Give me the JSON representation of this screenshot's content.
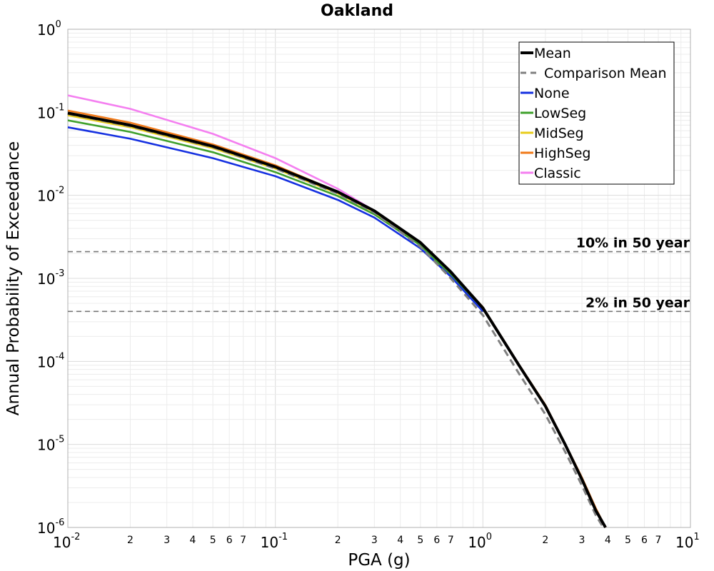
{
  "chart_data": {
    "type": "line",
    "title": "Oakland",
    "xlabel": "PGA (g)",
    "ylabel": "Annual Probability of Exceedance",
    "x_scale": "log",
    "y_scale": "log",
    "xlim": [
      0.01,
      10
    ],
    "ylim": [
      1e-06,
      1
    ],
    "grid": true,
    "legend_position": "top-right",
    "x_major_ticks": [
      {
        "base": "10",
        "exp": "-2",
        "value": 0.01
      },
      {
        "base": "10",
        "exp": "-1",
        "value": 0.1
      },
      {
        "base": "10",
        "exp": "0",
        "value": 1
      },
      {
        "base": "10",
        "exp": "1",
        "value": 10
      }
    ],
    "y_major_ticks": [
      {
        "base": "10",
        "exp": "0",
        "value": 1
      },
      {
        "base": "10",
        "exp": "-1",
        "value": 0.1
      },
      {
        "base": "10",
        "exp": "-2",
        "value": 0.01
      },
      {
        "base": "10",
        "exp": "-3",
        "value": 0.001
      },
      {
        "base": "10",
        "exp": "-4",
        "value": 0.0001
      },
      {
        "base": "10",
        "exp": "-5",
        "value": 1e-05
      },
      {
        "base": "10",
        "exp": "-6",
        "value": 1e-06
      }
    ],
    "x_minor_labels": [
      "2",
      "3",
      "4",
      "5",
      "6",
      "7"
    ],
    "reference_lines": [
      {
        "label": "10% in 50 year",
        "y": 0.0021,
        "color": "#777777"
      },
      {
        "label": "2% in 50 year",
        "y": 0.0004,
        "color": "#777777"
      }
    ],
    "series": [
      {
        "name": "Classic",
        "color": "#f47ff0",
        "style": "solid",
        "x": [
          0.01,
          0.02,
          0.05,
          0.1,
          0.2,
          0.3,
          0.5,
          0.7,
          1.0
        ],
        "y": [
          0.16,
          0.11,
          0.055,
          0.028,
          0.012,
          0.0065,
          0.0025,
          0.0011,
          0.00042
        ]
      },
      {
        "name": "HighSeg",
        "color": "#f07a1a",
        "style": "solid",
        "x": [
          0.01,
          0.02,
          0.05,
          0.1,
          0.2,
          0.3,
          0.5,
          0.7,
          1.0,
          1.5,
          2.0,
          2.5,
          3.0,
          3.5,
          3.9
        ],
        "y": [
          0.105,
          0.075,
          0.041,
          0.023,
          0.011,
          0.0065,
          0.0027,
          0.0012,
          0.00045,
          9e-05,
          3e-05,
          1e-05,
          4e-06,
          1.7e-06,
          1e-06
        ]
      },
      {
        "name": "MidSeg",
        "color": "#e8cc1c",
        "style": "solid",
        "x": [
          0.01,
          0.02,
          0.05,
          0.1,
          0.2,
          0.3,
          0.5,
          0.7,
          1.0
        ],
        "y": [
          0.092,
          0.066,
          0.037,
          0.021,
          0.0105,
          0.0063,
          0.0026,
          0.0012,
          0.00044
        ]
      },
      {
        "name": "LowSeg",
        "color": "#3fa02c",
        "style": "solid",
        "x": [
          0.01,
          0.02,
          0.05,
          0.1,
          0.2,
          0.3,
          0.5,
          0.7,
          1.0
        ],
        "y": [
          0.08,
          0.058,
          0.033,
          0.019,
          0.0098,
          0.0059,
          0.0025,
          0.0011,
          0.00042
        ]
      },
      {
        "name": "None",
        "color": "#1530e0",
        "style": "solid",
        "x": [
          0.01,
          0.02,
          0.05,
          0.1,
          0.2,
          0.3,
          0.5,
          0.7,
          1.0
        ],
        "y": [
          0.066,
          0.048,
          0.028,
          0.017,
          0.0088,
          0.0054,
          0.0023,
          0.00105,
          0.0004
        ]
      },
      {
        "name": "Comparison Mean",
        "color": "#808080",
        "style": "dashed",
        "x": [
          0.01,
          0.02,
          0.05,
          0.1,
          0.2,
          0.3,
          0.5,
          0.7,
          1.0,
          1.5,
          2.0,
          2.5,
          3.0,
          3.5,
          3.8
        ],
        "y": [
          0.096,
          0.068,
          0.038,
          0.021,
          0.0105,
          0.0062,
          0.0024,
          0.001,
          0.00036,
          7e-05,
          2.3e-05,
          8e-06,
          3.2e-06,
          1.4e-06,
          1e-06
        ]
      },
      {
        "name": "Mean",
        "color": "#000000",
        "style": "solid",
        "x": [
          0.01,
          0.02,
          0.05,
          0.1,
          0.2,
          0.3,
          0.5,
          0.7,
          1.0,
          1.5,
          2.0,
          2.5,
          3.0,
          3.5,
          3.9
        ],
        "y": [
          0.098,
          0.07,
          0.039,
          0.022,
          0.011,
          0.0065,
          0.0027,
          0.0012,
          0.00044,
          8.8e-05,
          2.9e-05,
          9.8e-06,
          3.8e-06,
          1.6e-06,
          1e-06
        ]
      }
    ],
    "legend": [
      {
        "name": "Mean",
        "color": "#000000",
        "style": "solid-thick"
      },
      {
        "name": "Comparison Mean",
        "color": "#808080",
        "style": "dashed"
      },
      {
        "name": "None",
        "color": "#1530e0",
        "style": "solid"
      },
      {
        "name": "LowSeg",
        "color": "#3fa02c",
        "style": "solid"
      },
      {
        "name": "MidSeg",
        "color": "#e8cc1c",
        "style": "solid"
      },
      {
        "name": "HighSeg",
        "color": "#f07a1a",
        "style": "solid"
      },
      {
        "name": "Classic",
        "color": "#f47ff0",
        "style": "solid"
      }
    ]
  }
}
